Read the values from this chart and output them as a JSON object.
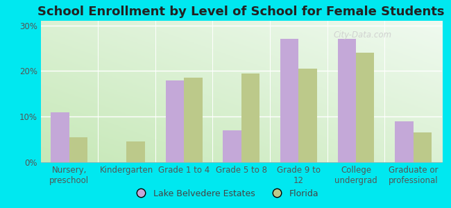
{
  "title": "School Enrollment by Level of School for Female Students",
  "categories": [
    "Nursery,\npreschool",
    "Kindergarten",
    "Grade 1 to 4",
    "Grade 5 to 8",
    "Grade 9 to\n12",
    "College\nundergrad",
    "Graduate or\nprofessional"
  ],
  "lake_belvedere": [
    11,
    0,
    18,
    7,
    27,
    27,
    9
  ],
  "florida": [
    5.5,
    4.5,
    18.5,
    19.5,
    20.5,
    24,
    6.5
  ],
  "color_lake": "#c4a8d8",
  "color_florida": "#bcc98a",
  "background_outer": "#00e8f0",
  "background_plot_bottom_left": "#c8e8b8",
  "background_plot_top_right": "#f0faf0",
  "ylim": [
    0,
    31
  ],
  "yticks": [
    0,
    10,
    20,
    30
  ],
  "ytick_labels": [
    "0%",
    "10%",
    "20%",
    "30%"
  ],
  "legend_lake": "Lake Belvedere Estates",
  "legend_florida": "Florida",
  "watermark": "City-Data.com",
  "title_fontsize": 13,
  "tick_fontsize": 8.5,
  "bar_width": 0.32
}
